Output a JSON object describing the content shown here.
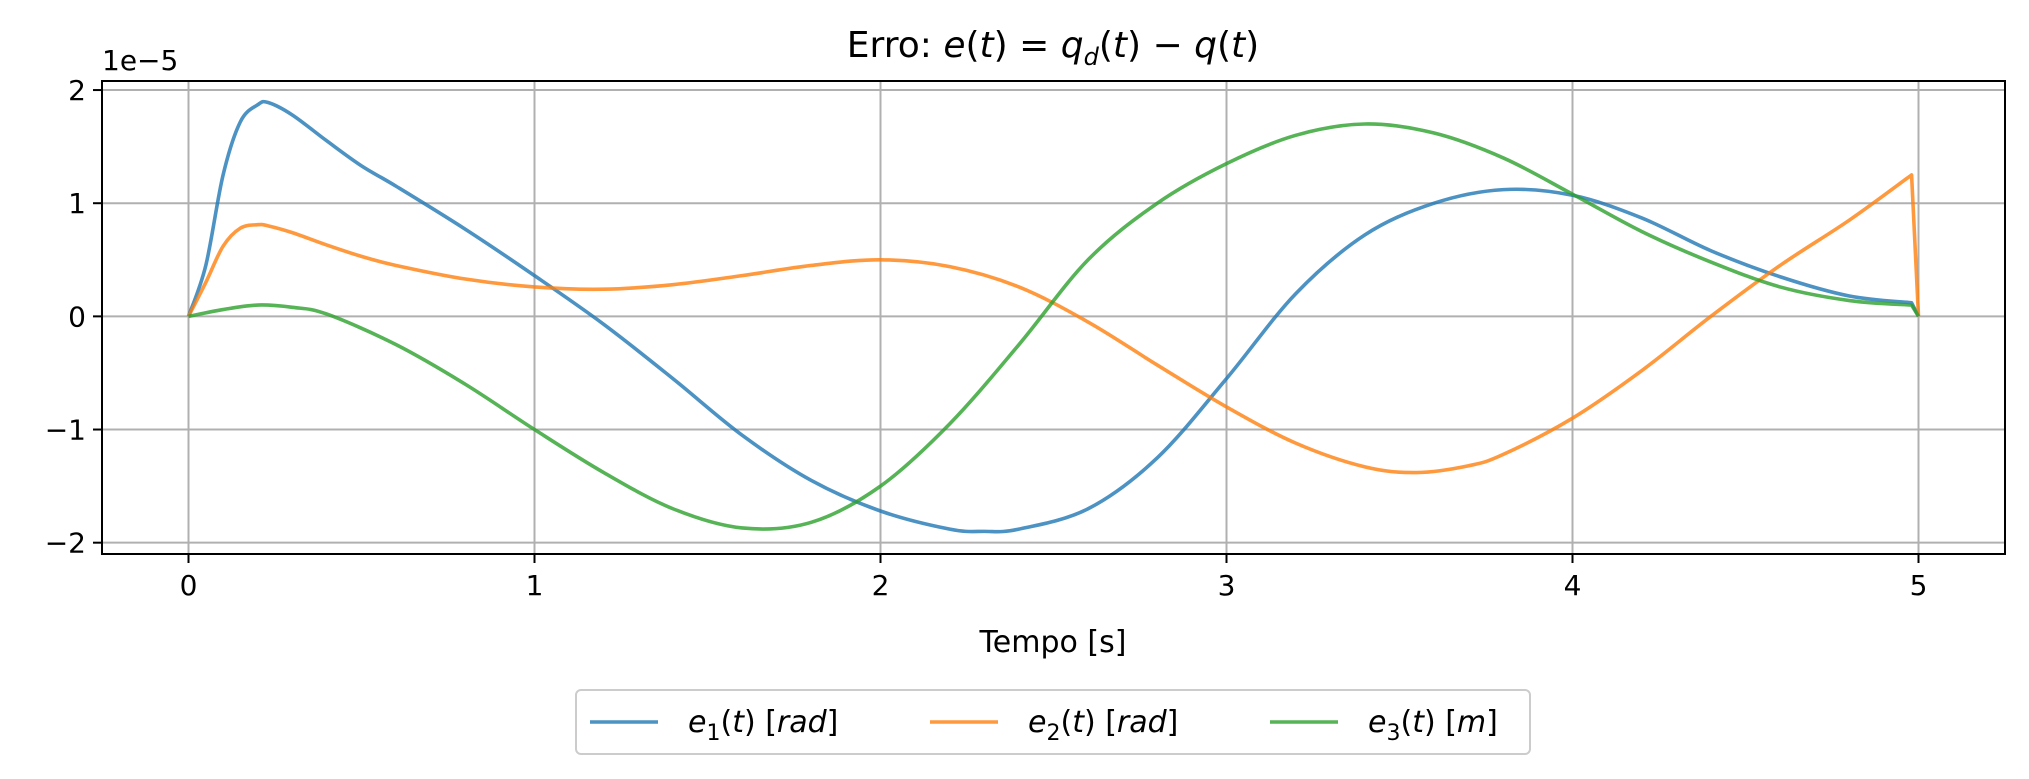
{
  "chart_data": {
    "type": "line",
    "title": {
      "prefix": "Erro: ",
      "math": "e(t) = q_d(t) − q(t)"
    },
    "xlabel": "Tempo [s]",
    "ylabel": "",
    "offset_label": "1e−5",
    "xlim": [
      -0.25,
      5.25
    ],
    "ylim": [
      -2.1,
      2.08
    ],
    "y_scale": 1e-05,
    "x_ticks": [
      0,
      1,
      2,
      3,
      4,
      5
    ],
    "x_tick_labels": [
      "0",
      "1",
      "2",
      "3",
      "4",
      "5"
    ],
    "y_ticks": [
      -2,
      -1,
      0,
      1,
      2
    ],
    "y_tick_labels": [
      "−2",
      "−1",
      "0",
      "1",
      "2"
    ],
    "grid": true,
    "legend_position": "bottom-center, outside",
    "series": [
      {
        "name": "e1(t) [rad]",
        "legend": {
          "var": "e",
          "sub": "1",
          "arg": "(t)",
          "unit": "rad"
        },
        "color": "#1f77b4",
        "x": [
          0,
          0.05,
          0.1,
          0.15,
          0.2,
          0.23,
          0.3,
          0.4,
          0.5,
          0.6,
          0.8,
          1.0,
          1.2,
          1.4,
          1.6,
          1.8,
          2.0,
          2.2,
          2.3,
          2.4,
          2.6,
          2.8,
          3.0,
          3.2,
          3.4,
          3.6,
          3.8,
          4.0,
          4.2,
          4.4,
          4.6,
          4.8,
          4.98,
          5.0
        ],
        "y": [
          0,
          0.45,
          1.25,
          1.72,
          1.87,
          1.89,
          1.78,
          1.55,
          1.33,
          1.15,
          0.77,
          0.36,
          -0.07,
          -0.55,
          -1.05,
          -1.45,
          -1.72,
          -1.88,
          -1.9,
          -1.88,
          -1.7,
          -1.25,
          -0.55,
          0.2,
          0.72,
          1.0,
          1.12,
          1.07,
          0.87,
          0.58,
          0.35,
          0.18,
          0.12,
          0.0
        ]
      },
      {
        "name": "e2(t) [rad]",
        "legend": {
          "var": "e",
          "sub": "2",
          "arg": "(t)",
          "unit": "rad"
        },
        "color": "#ff7f0e",
        "x": [
          0,
          0.05,
          0.1,
          0.15,
          0.2,
          0.23,
          0.3,
          0.4,
          0.5,
          0.6,
          0.8,
          1.0,
          1.2,
          1.4,
          1.6,
          1.8,
          2.0,
          2.2,
          2.4,
          2.6,
          2.8,
          3.0,
          3.2,
          3.4,
          3.55,
          3.7,
          3.8,
          4.0,
          4.2,
          4.4,
          4.6,
          4.8,
          4.98,
          5.0
        ],
        "y": [
          0,
          0.3,
          0.62,
          0.78,
          0.81,
          0.8,
          0.74,
          0.63,
          0.53,
          0.45,
          0.33,
          0.26,
          0.24,
          0.28,
          0.36,
          0.45,
          0.5,
          0.44,
          0.26,
          -0.05,
          -0.43,
          -0.8,
          -1.12,
          -1.33,
          -1.38,
          -1.32,
          -1.22,
          -0.9,
          -0.48,
          0.0,
          0.45,
          0.85,
          1.25,
          0.0
        ]
      },
      {
        "name": "e3(t) [m]",
        "legend": {
          "var": "e",
          "sub": "3",
          "arg": "(t)",
          "unit": "m"
        },
        "color": "#2ca02c",
        "x": [
          0,
          0.1,
          0.2,
          0.3,
          0.4,
          0.6,
          0.8,
          1.0,
          1.2,
          1.4,
          1.6,
          1.8,
          2.0,
          2.2,
          2.4,
          2.6,
          2.8,
          3.0,
          3.2,
          3.4,
          3.6,
          3.8,
          4.0,
          4.2,
          4.4,
          4.6,
          4.8,
          4.98,
          5.0
        ],
        "y": [
          0,
          0.06,
          0.1,
          0.08,
          0.02,
          -0.25,
          -0.6,
          -1.0,
          -1.38,
          -1.7,
          -1.87,
          -1.82,
          -1.5,
          -0.95,
          -0.25,
          0.5,
          1.0,
          1.35,
          1.6,
          1.7,
          1.62,
          1.4,
          1.08,
          0.75,
          0.48,
          0.26,
          0.14,
          0.1,
          0.0
        ]
      }
    ]
  }
}
